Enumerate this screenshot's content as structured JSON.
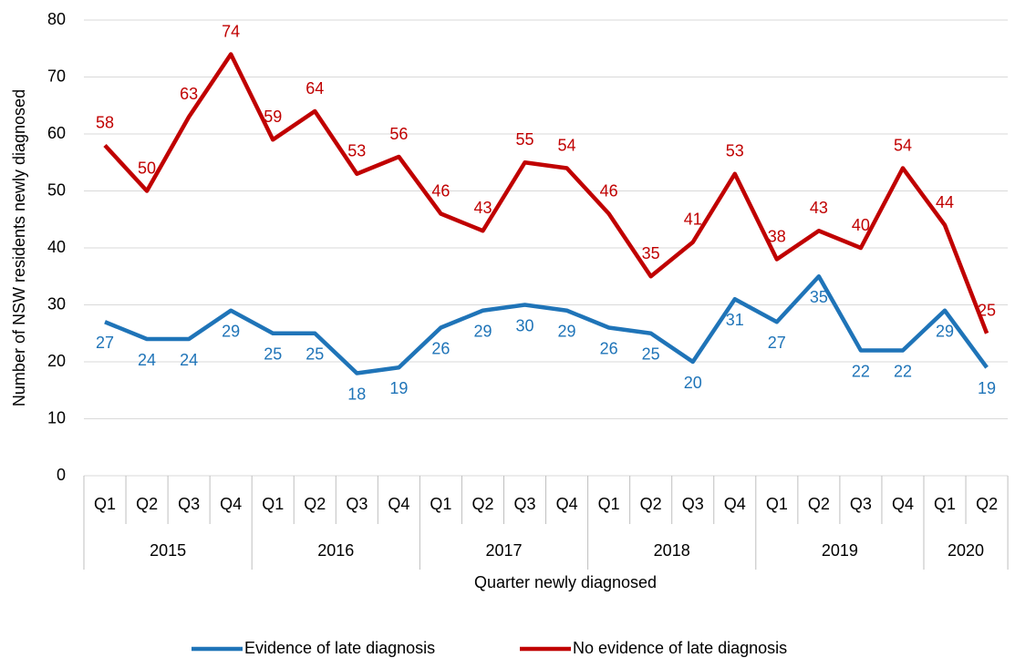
{
  "chart_data": {
    "type": "line",
    "x_label": "Quarter newly diagnosed",
    "y_label": "Number of NSW residents newly diagnosed",
    "year_groups": [
      {
        "label": "2015",
        "quarters": [
          "Q1",
          "Q2",
          "Q3",
          "Q4"
        ]
      },
      {
        "label": "2016",
        "quarters": [
          "Q1",
          "Q2",
          "Q3",
          "Q4"
        ]
      },
      {
        "label": "2017",
        "quarters": [
          "Q1",
          "Q2",
          "Q3",
          "Q4"
        ]
      },
      {
        "label": "2018",
        "quarters": [
          "Q1",
          "Q2",
          "Q3",
          "Q4"
        ]
      },
      {
        "label": "2019",
        "quarters": [
          "Q1",
          "Q2",
          "Q3",
          "Q4"
        ]
      },
      {
        "label": "2020",
        "quarters": [
          "Q1",
          "Q2"
        ]
      }
    ],
    "series": [
      {
        "name": "Evidence of late diagnosis",
        "color": "#1f74b8",
        "values": [
          27,
          24,
          24,
          29,
          25,
          25,
          18,
          19,
          26,
          29,
          30,
          29,
          26,
          25,
          20,
          31,
          27,
          35,
          22,
          22,
          29,
          19
        ]
      },
      {
        "name": "No evidence of late diagnosis",
        "color": "#c00000",
        "values": [
          58,
          50,
          63,
          74,
          59,
          64,
          53,
          56,
          46,
          43,
          55,
          54,
          46,
          35,
          41,
          53,
          38,
          43,
          40,
          54,
          44,
          25
        ]
      }
    ],
    "ylim": [
      0,
      80
    ],
    "yticks": [
      0,
      10,
      20,
      30,
      40,
      50,
      60,
      70,
      80
    ],
    "grid": true
  }
}
